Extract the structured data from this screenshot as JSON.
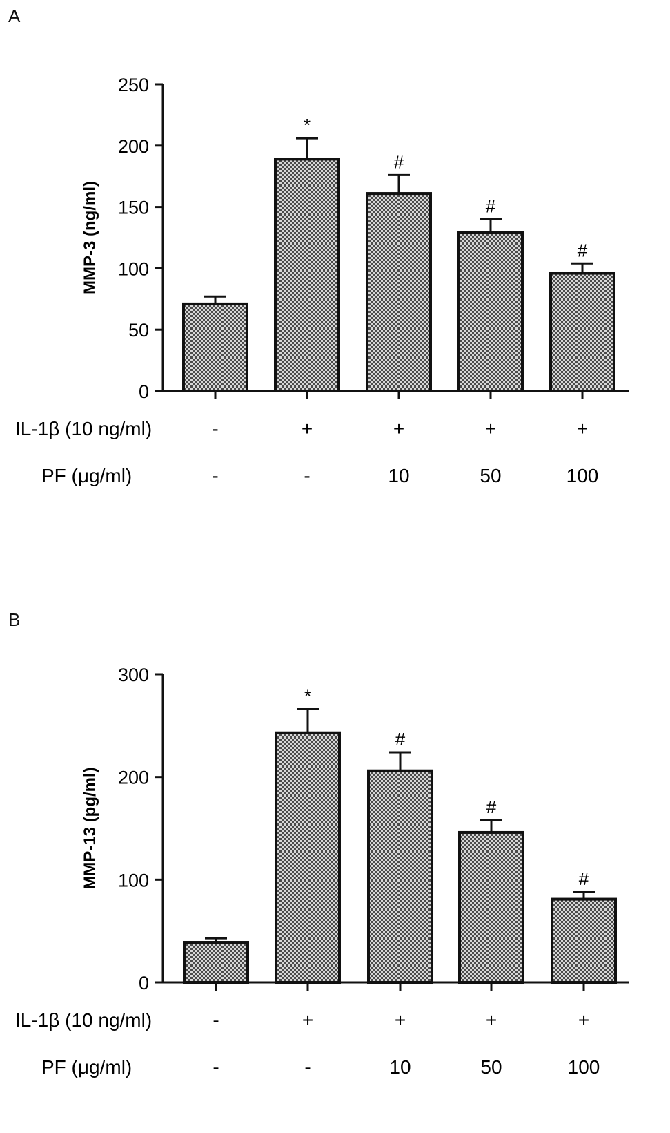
{
  "panels": {
    "A": {
      "letter": "A",
      "cond_row1": "IL-1β (10 ng/ml)",
      "cond_row2": "PF (μg/ml)",
      "row1_values": [
        "-",
        "+",
        "+",
        "+",
        "+"
      ],
      "row2_values": [
        "-",
        "-",
        "10",
        "50",
        "100"
      ]
    },
    "B": {
      "letter": "B",
      "cond_row1": "IL-1β (10 ng/ml)",
      "cond_row2": "PF (μg/ml)",
      "row1_values": [
        "-",
        "+",
        "+",
        "+",
        "+"
      ],
      "row2_values": [
        "-",
        "-",
        "10",
        "50",
        "100"
      ]
    }
  },
  "chart_data": [
    {
      "type": "bar",
      "panel": "A",
      "ylabel": "MMP-3 (ng/ml)",
      "ylim": [
        0,
        250
      ],
      "yticks": [
        0,
        50,
        100,
        150,
        200,
        250
      ],
      "values": [
        71,
        189,
        161,
        129,
        96
      ],
      "errors": [
        6,
        17,
        15,
        11,
        8
      ],
      "annotations": [
        "",
        "*",
        "#",
        "#",
        "#"
      ],
      "fill": "checkered gray",
      "grid": false
    },
    {
      "type": "bar",
      "panel": "B",
      "ylabel": "MMP-13 (pg/ml)",
      "ylim": [
        0,
        300
      ],
      "yticks": [
        0,
        100,
        200,
        300
      ],
      "values": [
        39,
        243,
        206,
        146,
        81
      ],
      "errors": [
        4,
        23,
        18,
        12,
        7
      ],
      "annotations": [
        "",
        "*",
        "#",
        "#",
        "#"
      ],
      "fill": "checkered gray",
      "grid": false
    }
  ]
}
